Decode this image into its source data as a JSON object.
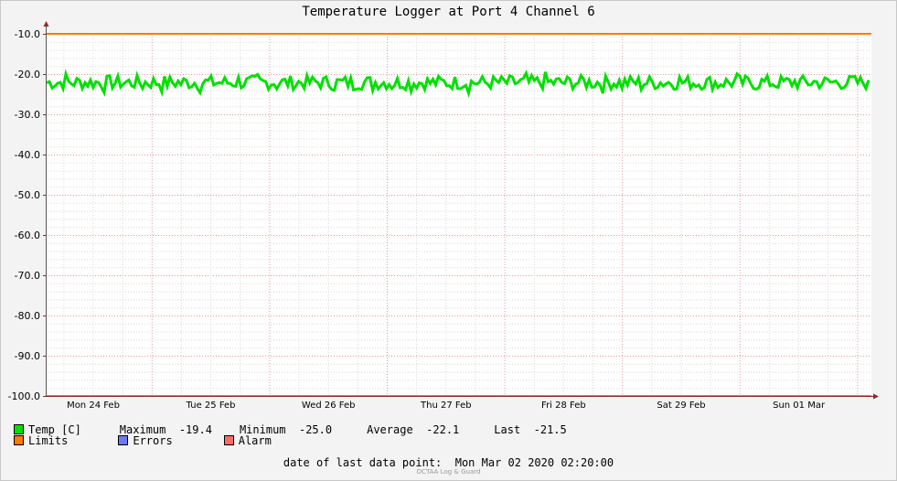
{
  "chart_data": {
    "type": "line",
    "title": "Temperature Logger at Port 4 Channel 6",
    "xlabel": "",
    "ylabel": "",
    "ylim": [
      -100.0,
      -10.0
    ],
    "yticks": [
      "-10.0",
      "-20.0",
      "-30.0",
      "-40.0",
      "-50.0",
      "-60.0",
      "-70.0",
      "-80.0",
      "-90.0",
      "-100.0"
    ],
    "x_range": [
      "2020-02-23 19:00",
      "2020-03-02 02:20"
    ],
    "xticks": [
      "Mon 24 Feb",
      "Tue 25 Feb",
      "Wed 26 Feb",
      "Thu 27 Feb",
      "Fri 28 Feb",
      "Sat 29 Feb",
      "Sun 01 Mar"
    ],
    "grid": true,
    "series": [
      {
        "name": "Temp [C]",
        "color": "#00e000",
        "min": -25.0,
        "max": -19.4,
        "average": -22.1,
        "last": -21.5
      },
      {
        "name": "Limits",
        "color": "#ff7b00",
        "values": [
          -10.0,
          -100.0
        ]
      },
      {
        "name": "Errors",
        "color": "#6b78ff",
        "values": []
      },
      {
        "name": "Alarm",
        "color": "#ff6b6b",
        "values": []
      }
    ]
  },
  "legend": {
    "temp_label": "Temp [C]",
    "max_label": "Maximum",
    "max_value": "-19.4",
    "min_label": "Minimum",
    "min_value": "-25.0",
    "avg_label": "Average",
    "avg_value": "-22.1",
    "last_label": "Last",
    "last_value": "-21.5",
    "limits_label": "Limits",
    "errors_label": "Errors",
    "alarm_label": "Alarm"
  },
  "footer": {
    "last_point_label": "date of last data point:",
    "last_point_value": "Mon Mar 02 2020 02:20:00",
    "credit": "OCTAA Log & Guard"
  }
}
